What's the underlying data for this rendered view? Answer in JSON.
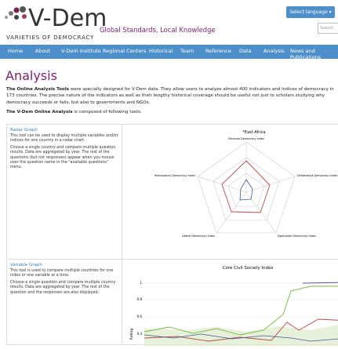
{
  "header": {
    "logo_title": "V-Dem",
    "logo_subtitle": "VARIETIES OF DEMOCRACY",
    "tagline": "Global Standards, Local Knowledge",
    "language_button": "Select language",
    "search_placeholder": "Search"
  },
  "nav": [
    "Home",
    "About",
    "V-Dem Institute",
    "Regional Centers",
    "Historical",
    "Team",
    "Reference",
    "Data",
    "Analysis",
    "News and Publications"
  ],
  "page": {
    "title": "Analysis",
    "intro_bold": "The Online Analysis Tools",
    "intro_text": " were specially designed for V-Dem data. They allow users to analyze almost 400 indicators and indices of democracy in 173 countries. The precise nature of the indicators as well as their lengthy historical coverage should be useful not just to scholars studying why democracy succeeds or fails, but also to governments and NGOs.",
    "tools_bold": "The V-Dem Online Analysis",
    "tools_text": " is composed of following tools:"
  },
  "tools": [
    {
      "name": "Radar Graph",
      "description": [
        "This tool can be used to display multiple variables and/or indices for one country in a radar chart.",
        "Choose a single country and compare multiple question results. Data are aggregated by year. The rest of the questions (but not responses) appear when you mouse over the question name in the \"available questions\" menu."
      ],
      "chart": {
        "title": "*East Africa",
        "axes": [
          "Electoral Democracy Index",
          "Deliberative Democracy Index",
          "Egalitarian Democracy Index",
          "Liberal Democracy Index",
          "Participatory Democracy Index"
        ]
      }
    },
    {
      "name": "Variable Graph",
      "description": [
        "This tool is used to compare multiple countries for one index or one variable at a time.",
        "Choose a single question and compare multiple country results. Data are aggregated by year. The rest of the question and the responses are also displayed."
      ],
      "chart": {
        "title": "Core Civil Society Index",
        "ylabel": "Rating",
        "yticks": [
          "1",
          "0.8",
          "0.6",
          "0.4"
        ]
      }
    }
  ]
}
